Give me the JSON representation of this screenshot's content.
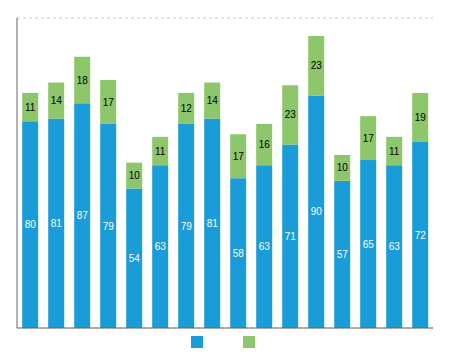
{
  "chart_data": {
    "type": "bar",
    "stacked": true,
    "categories": [
      null,
      null,
      null,
      null,
      null,
      null,
      null,
      null,
      null,
      null,
      null,
      null,
      null,
      null,
      null,
      null
    ],
    "series": [
      {
        "color": "#1a9cd8",
        "values": [
          80,
          81,
          87,
          79,
          54,
          63,
          79,
          81,
          58,
          63,
          71,
          90,
          57,
          65,
          63,
          72
        ]
      },
      {
        "color": "#8dc66b",
        "values": [
          11,
          14,
          18,
          17,
          10,
          11,
          12,
          14,
          17,
          16,
          23,
          23,
          10,
          17,
          11,
          19
        ]
      }
    ],
    "ylim": [
      0,
      120
    ],
    "yticks": [
      0,
      20,
      40,
      60,
      80,
      100
    ],
    "grid": true,
    "data_labels": true,
    "tick_labels": false,
    "legend": "bottom"
  }
}
